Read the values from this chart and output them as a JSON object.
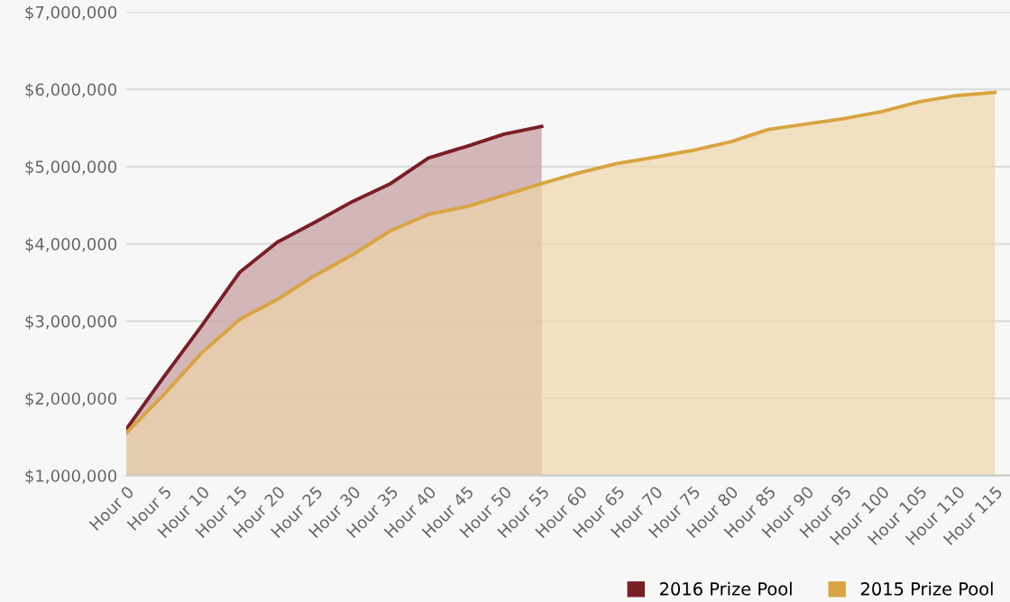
{
  "chart_data": {
    "type": "area",
    "legend": "bottom right",
    "grid": "y",
    "categories": [
      "Hour 0",
      "Hour 5",
      "Hour 10",
      "Hour 15",
      "Hour 20",
      "Hour 25",
      "Hour 30",
      "Hour 35",
      "Hour 40",
      "Hour 45",
      "Hour 50",
      "Hour 55",
      "Hour 60",
      "Hour 65",
      "Hour 70",
      "Hour 75",
      "Hour 80",
      "Hour 85",
      "Hour 90",
      "Hour 95",
      "Hour 100",
      "Hour 105",
      "Hour 110",
      "Hour 115"
    ],
    "ylim": [
      1000000,
      7000000
    ],
    "yticks": [
      {
        "value": 1000000,
        "label": "$1,000,000"
      },
      {
        "value": 2000000,
        "label": "$2,000,000"
      },
      {
        "value": 3000000,
        "label": "$3,000,000"
      },
      {
        "value": 4000000,
        "label": "$4,000,000"
      },
      {
        "value": 5000000,
        "label": "$5,000,000"
      },
      {
        "value": 6000000,
        "label": "$6,000,000"
      },
      {
        "value": 7000000,
        "label": "$7,000,000"
      }
    ],
    "series": [
      {
        "name": "2016 Prize Pool",
        "color": "#7a1f26",
        "values": [
          1600000,
          2280000,
          2940000,
          3630000,
          4020000,
          4280000,
          4550000,
          4780000,
          5110000,
          5260000,
          5420000,
          5520000,
          null,
          null,
          null,
          null,
          null,
          null,
          null,
          null,
          null,
          null,
          null,
          null
        ]
      },
      {
        "name": "2015 Prize Pool",
        "color": "#d9a441",
        "values": [
          1550000,
          2050000,
          2590000,
          3020000,
          3280000,
          3590000,
          3860000,
          4170000,
          4380000,
          4480000,
          4630000,
          4780000,
          4920000,
          5040000,
          5120000,
          5210000,
          5320000,
          5480000,
          5550000,
          5620000,
          5710000,
          5840000,
          5920000,
          5960000
        ]
      }
    ]
  }
}
